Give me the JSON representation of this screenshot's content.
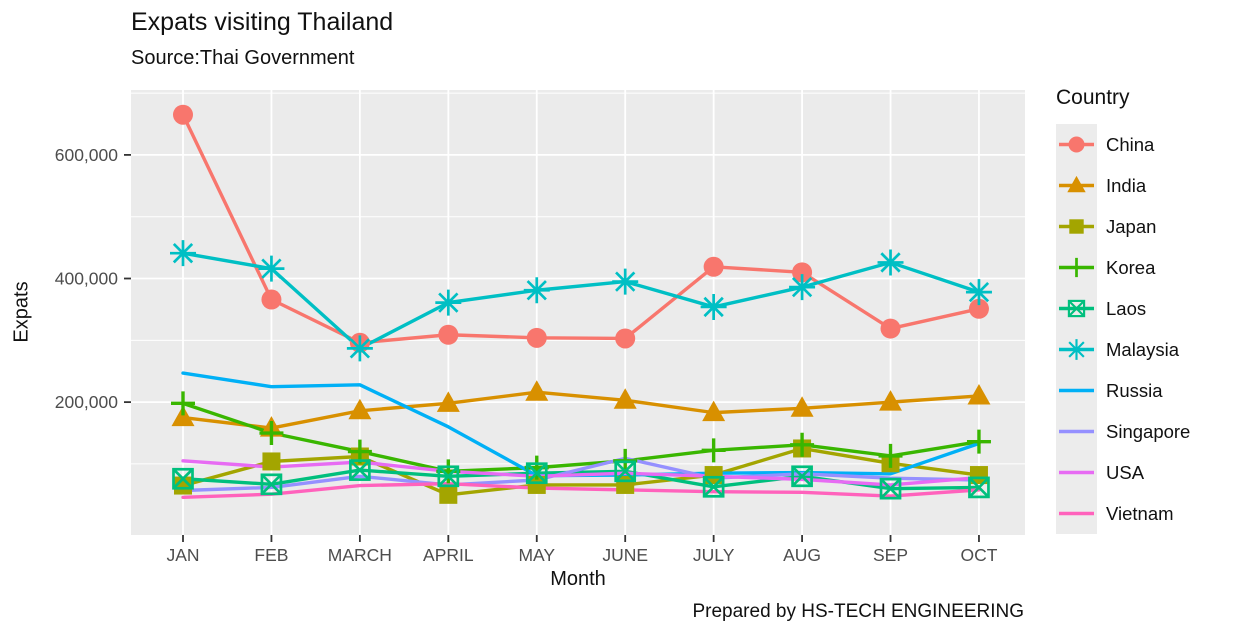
{
  "title": "Expats visiting Thailand",
  "subtitle": "Source:Thai Government",
  "footer": "Prepared by HS-TECH ENGINEERING",
  "colors": {
    "panel_bg": "#EBEBEB",
    "grid": "#FFFFFF",
    "tick_text": "#4D4D4D",
    "tick_mark": "#333333",
    "legend_key_bg": "#ECECEC"
  },
  "chart_data": {
    "type": "line",
    "title": "Expats visiting Thailand",
    "subtitle": "Source:Thai Government",
    "xlabel": "Month",
    "ylabel": "Expats",
    "legend_title": "Country",
    "legend_position": "right",
    "grid": true,
    "categories": [
      "JAN",
      "FEB",
      "MARCH",
      "APRIL",
      "MAY",
      "JUNE",
      "JULY",
      "AUG",
      "SEP",
      "OCT"
    ],
    "y_axis": {
      "tick_values": [
        200000,
        400000,
        600000
      ],
      "tick_labels": [
        "200,000",
        "400,000",
        "600,000"
      ],
      "minor_values": [
        100000,
        300000,
        500000,
        700000
      ],
      "range": [
        -15000,
        705000
      ]
    },
    "series": [
      {
        "name": "China",
        "color": "#F8766D",
        "marker": "circle",
        "values": [
          665000,
          366000,
          296000,
          309000,
          304000,
          303000,
          419000,
          410000,
          319000,
          351000
        ]
      },
      {
        "name": "India",
        "color": "#D89000",
        "marker": "triangle",
        "values": [
          175000,
          158000,
          186000,
          198000,
          216000,
          203000,
          183000,
          190000,
          200000,
          210000
        ]
      },
      {
        "name": "Japan",
        "color": "#A3A500",
        "marker": "square",
        "values": [
          65000,
          104000,
          112000,
          50000,
          66000,
          66000,
          82000,
          125000,
          101000,
          82000
        ]
      },
      {
        "name": "Korea",
        "color": "#39B600",
        "marker": "plus",
        "values": [
          198000,
          150000,
          120000,
          88000,
          94000,
          105000,
          122000,
          131000,
          113000,
          136000
        ]
      },
      {
        "name": "Laos",
        "color": "#00BF7D",
        "marker": "crossed-square",
        "values": [
          76000,
          67000,
          90000,
          80000,
          85000,
          88000,
          63000,
          80000,
          60000,
          62000
        ]
      },
      {
        "name": "Malaysia",
        "color": "#00BFC4",
        "marker": "asterisk",
        "values": [
          441000,
          416000,
          287000,
          361000,
          381000,
          395000,
          354000,
          386000,
          426000,
          378000
        ]
      },
      {
        "name": "Russia",
        "color": "#00B0F6",
        "marker": null,
        "values": [
          247000,
          225000,
          228000,
          160000,
          81000,
          82000,
          85000,
          86000,
          84000,
          133000
        ]
      },
      {
        "name": "Singapore",
        "color": "#9590FF",
        "marker": null,
        "values": [
          57000,
          62000,
          80000,
          66000,
          74000,
          109000,
          77000,
          84000,
          77000,
          74000
        ]
      },
      {
        "name": "USA",
        "color": "#E76BF3",
        "marker": null,
        "values": [
          105000,
          95000,
          103000,
          88000,
          80000,
          85000,
          80000,
          75000,
          66000,
          78000
        ]
      },
      {
        "name": "Vietnam",
        "color": "#FF62BC",
        "marker": null,
        "values": [
          46000,
          51000,
          65000,
          68000,
          61000,
          58000,
          55000,
          54000,
          48000,
          58000
        ]
      }
    ]
  }
}
